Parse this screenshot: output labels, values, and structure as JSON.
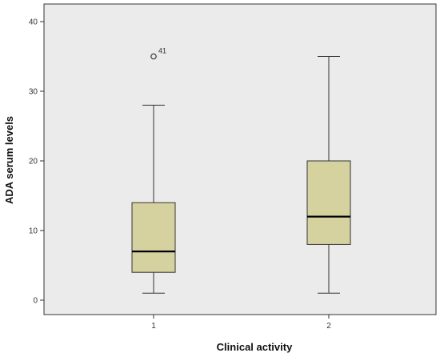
{
  "chart_data": {
    "type": "boxplot",
    "title": "",
    "xlabel": "Clinical activity",
    "ylabel": "ADA serum levels",
    "ylim": [
      -2,
      42
    ],
    "yticks": [
      0,
      10,
      20,
      30,
      40
    ],
    "grid": false,
    "categories": [
      "1",
      "2"
    ],
    "boxes": [
      {
        "category": "1",
        "min": 1,
        "q1": 4,
        "median": 7,
        "q3": 14,
        "max": 28,
        "outliers": [
          {
            "value": 35,
            "label": "41"
          }
        ]
      },
      {
        "category": "2",
        "min": 1,
        "q1": 8,
        "median": 12,
        "q3": 20,
        "max": 35,
        "outliers": []
      }
    ],
    "colors": {
      "plot_background": "#ebebeb",
      "box_fill": "#d6d2a0",
      "stroke": "#333333",
      "median": "#000000"
    }
  }
}
